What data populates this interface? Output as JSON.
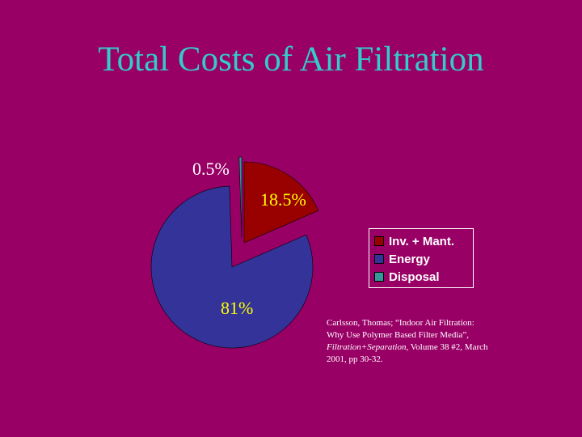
{
  "slide": {
    "title": "Total Costs of Air Filtration",
    "background_color": "#990066",
    "title_color": "#33cccc"
  },
  "chart_data": {
    "type": "pie",
    "categories": [
      "Inv. + Mant.",
      "Energy",
      "Disposal"
    ],
    "values": [
      18.5,
      81,
      0.5
    ],
    "data_labels": [
      "18.5%",
      "81%",
      "0.5%"
    ],
    "colors": [
      "#990000",
      "#333399",
      "#339999"
    ],
    "exploded": true,
    "legend_position": "right",
    "legend": [
      {
        "label": "Inv. + Mant.",
        "color": "#990000"
      },
      {
        "label": "Energy",
        "color": "#333399"
      },
      {
        "label": "Disposal",
        "color": "#339999"
      }
    ]
  },
  "citation": {
    "text_before": "Carlsson, Thomas; “Indoor Air Filtration: Why Use Polymer Based Filter Media”, ",
    "italic": "Filtration+Separation",
    "text_after": ", Volume 38 #2, March 2001, pp 30-32."
  }
}
